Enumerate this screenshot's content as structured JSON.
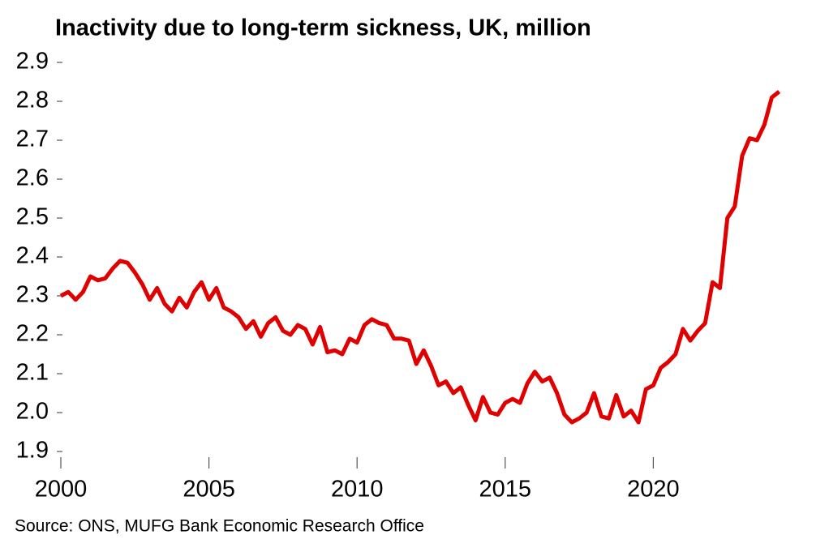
{
  "chart_data": {
    "type": "line",
    "title": "Inactivity due to long-term sickness, UK, million",
    "source": "Source: ONS, MUFG Bank Economic Research Office",
    "xlim": [
      2000,
      2025
    ],
    "xticks": [
      2000,
      2005,
      2010,
      2015,
      2020
    ],
    "ylim": [
      1.9,
      2.9
    ],
    "yticks": [
      1.9,
      {
        "value": 2,
        "label": "2.0"
      },
      2.1,
      2.2,
      2.3,
      2.4,
      2.5,
      2.6,
      2.7,
      2.8,
      2.9
    ],
    "grid": false,
    "x": [
      2000,
      2000.25,
      2000.5,
      2000.75,
      2001,
      2001.25,
      2001.5,
      2001.75,
      2002,
      2002.25,
      2002.5,
      2002.75,
      2003,
      2003.25,
      2003.5,
      2003.75,
      2004,
      2004.25,
      2004.5,
      2004.75,
      2005,
      2005.25,
      2005.5,
      2005.75,
      2006,
      2006.25,
      2006.5,
      2006.75,
      2007,
      2007.25,
      2007.5,
      2007.75,
      2008,
      2008.25,
      2008.5,
      2008.75,
      2009,
      2009.25,
      2009.5,
      2009.75,
      2010,
      2010.25,
      2010.5,
      2010.75,
      2011,
      2011.25,
      2011.5,
      2011.75,
      2012,
      2012.25,
      2012.5,
      2012.75,
      2013,
      2013.25,
      2013.5,
      2013.75,
      2014,
      2014.25,
      2014.5,
      2014.75,
      2015,
      2015.25,
      2015.5,
      2015.75,
      2016,
      2016.25,
      2016.5,
      2016.75,
      2017,
      2017.25,
      2017.5,
      2017.75,
      2018,
      2018.25,
      2018.5,
      2018.75,
      2019,
      2019.25,
      2019.5,
      2019.75,
      2020,
      2020.25,
      2020.5,
      2020.75,
      2021,
      2021.25,
      2021.5,
      2021.75,
      2022,
      2022.25,
      2022.5,
      2022.75,
      2023,
      2023.25,
      2023.5,
      2023.75,
      2024,
      2024.25
    ],
    "series": [
      {
        "name": "Inactivity due to long-term sickness",
        "color": "#e00000",
        "values": [
          2.3,
          2.31,
          2.29,
          2.31,
          2.35,
          2.34,
          2.345,
          2.37,
          2.39,
          2.385,
          2.36,
          2.33,
          2.29,
          2.32,
          2.28,
          2.26,
          2.295,
          2.27,
          2.31,
          2.335,
          2.29,
          2.32,
          2.27,
          2.26,
          2.245,
          2.215,
          2.235,
          2.195,
          2.23,
          2.245,
          2.21,
          2.2,
          2.225,
          2.215,
          2.175,
          2.22,
          2.155,
          2.16,
          2.15,
          2.19,
          2.18,
          2.225,
          2.24,
          2.23,
          2.225,
          2.19,
          2.19,
          2.185,
          2.125,
          2.16,
          2.12,
          2.07,
          2.08,
          2.05,
          2.065,
          2.02,
          1.98,
          2.04,
          2.0,
          1.995,
          2.025,
          2.035,
          2.025,
          2.075,
          2.105,
          2.08,
          2.09,
          2.05,
          1.995,
          1.975,
          1.985,
          2.0,
          2.05,
          1.99,
          1.985,
          2.045,
          1.99,
          2.005,
          1.975,
          2.06,
          2.07,
          2.115,
          2.13,
          2.15,
          2.215,
          2.185,
          2.21,
          2.23,
          2.335,
          2.32,
          2.5,
          2.53,
          2.66,
          2.705,
          2.7,
          2.74,
          2.81,
          2.825
        ]
      }
    ]
  }
}
